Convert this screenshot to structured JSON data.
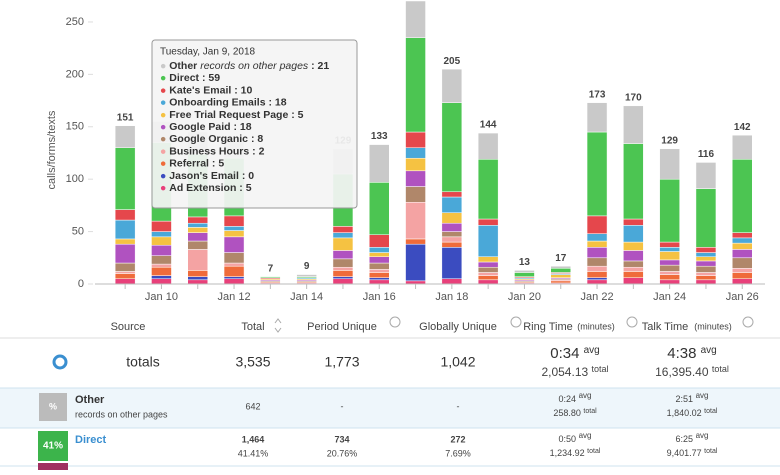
{
  "chart_data": {
    "type": "bar",
    "stacked": true,
    "y_label": "calls/forms/texts",
    "categories": [
      null,
      "Jan 10",
      null,
      "Jan 12",
      null,
      "Jan 14",
      null,
      "Jan 16",
      null,
      "Jan 18",
      null,
      "Jan 20",
      null,
      "Jan 22",
      null,
      "Jan 24",
      null,
      "Jan 26"
    ],
    "ylim": [
      0,
      270
    ],
    "yticks": [
      0,
      50,
      100,
      150,
      200,
      250
    ],
    "grid": false,
    "series": [
      {
        "name": "Other",
        "color": "#c9c9c9",
        "values": [
          21,
          20,
          21,
          20,
          0,
          2,
          24,
          36,
          35,
          32,
          25,
          2,
          2,
          28,
          36,
          29,
          25,
          23
        ]
      },
      {
        "name": "Direct",
        "color": "#4cc552",
        "values": [
          59,
          75,
          60,
          55,
          1,
          1,
          50,
          50,
          90,
          85,
          57,
          4,
          4,
          80,
          72,
          60,
          56,
          70
        ]
      },
      {
        "name": "Kate's Email",
        "color": "#e5474c",
        "values": [
          10,
          10,
          6,
          10,
          1,
          0,
          6,
          12,
          15,
          5,
          6,
          1,
          1,
          17,
          6,
          5,
          5,
          5
        ]
      },
      {
        "name": "Onboarding Emails",
        "color": "#4aa8d8",
        "values": [
          18,
          5,
          4,
          4,
          0,
          1,
          5,
          5,
          10,
          15,
          30,
          1,
          1,
          7,
          16,
          4,
          4,
          5
        ]
      },
      {
        "name": "Free Trial Request Page",
        "color": "#f5c242",
        "values": [
          5,
          8,
          5,
          6,
          1,
          1,
          12,
          4,
          12,
          10,
          5,
          1,
          3,
          6,
          8,
          8,
          4,
          6
        ]
      },
      {
        "name": "Google Paid",
        "color": "#b052c0",
        "values": [
          18,
          10,
          8,
          15,
          1,
          1,
          8,
          6,
          15,
          8,
          5,
          1,
          1,
          10,
          10,
          5,
          5,
          8
        ]
      },
      {
        "name": "Google Organic",
        "color": "#b0876a",
        "values": [
          8,
          8,
          8,
          10,
          1,
          1,
          8,
          6,
          15,
          5,
          5,
          1,
          1,
          8,
          6,
          6,
          6,
          10
        ]
      },
      {
        "name": "Business Hours",
        "color": "#f4a3a3",
        "values": [
          2,
          3,
          20,
          3,
          0,
          0,
          3,
          3,
          35,
          5,
          3,
          0,
          1,
          5,
          4,
          3,
          3,
          4
        ]
      },
      {
        "name": "Referral",
        "color": "#ef6b3a",
        "values": [
          5,
          8,
          6,
          10,
          1,
          1,
          6,
          5,
          5,
          5,
          4,
          1,
          2,
          6,
          6,
          5,
          4,
          6
        ]
      },
      {
        "name": "Jason's Email",
        "color": "#3b4cc0",
        "values": [
          0,
          3,
          3,
          2,
          0,
          0,
          2,
          2,
          35,
          30,
          0,
          0,
          0,
          2,
          0,
          0,
          0,
          0
        ]
      },
      {
        "name": "Ad Extension",
        "color": "#e8407a",
        "values": [
          5,
          5,
          4,
          5,
          1,
          1,
          5,
          4,
          3,
          5,
          4,
          1,
          1,
          4,
          6,
          4,
          4,
          5
        ]
      }
    ],
    "totals": [
      151,
      null,
      null,
      null,
      7,
      9,
      129,
      133,
      null,
      205,
      144,
      13,
      17,
      173,
      170,
      129,
      116,
      142
    ],
    "tooltip": {
      "title": "Tuesday, Jan 9, 2018",
      "note": "records on other pages",
      "separator": ":",
      "index": 0
    }
  },
  "table": {
    "headers": [
      "Source",
      "Total",
      "Period Unique",
      "Globally Unique",
      "Ring Time",
      "Talk Time"
    ],
    "unit": "(minutes)",
    "avg": "avg",
    "total": "total",
    "totals": {
      "label": "totals",
      "total": "3,535",
      "period": "1,773",
      "global": "1,042",
      "ring_avg": "0:34",
      "ring_total": "2,054.13",
      "talk_avg": "4:38",
      "talk_total": "16,395.40"
    },
    "rows": [
      {
        "icon": "%",
        "name": "Other",
        "note": "records on other pages",
        "total": "642",
        "period": "-",
        "global": "-",
        "ring_avg": "0:24",
        "ring_total": "258.80",
        "talk_avg": "2:51",
        "talk_total": "1,840.02"
      },
      {
        "icon": "41%",
        "name": "Direct",
        "total": "1,464",
        "total_pct": "41.41%",
        "period": "734",
        "period_pct": "20.76%",
        "global": "272",
        "global_pct": "7.69%",
        "ring_avg": "0:50",
        "ring_total": "1,234.92",
        "talk_avg": "6:25",
        "talk_total": "9,401.77"
      }
    ]
  }
}
